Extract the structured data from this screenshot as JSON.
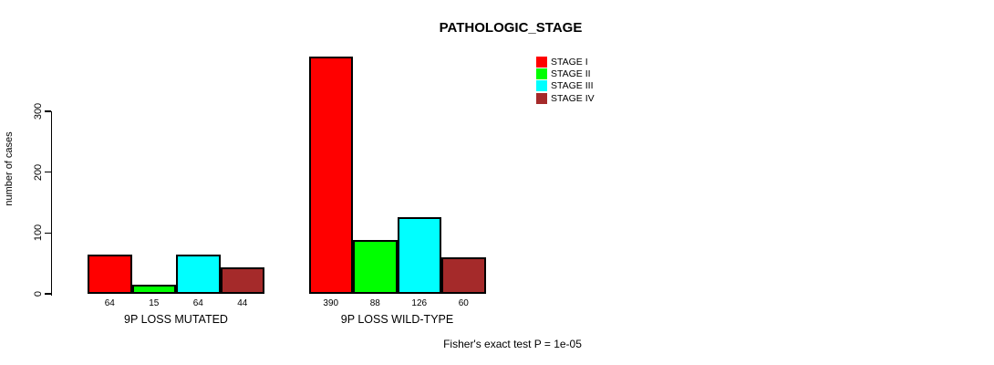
{
  "title": "PATHOLOGIC_STAGE",
  "footer_note": "Fisher's exact test P = 1e-05",
  "colors": {
    "background": "#FFFFFF",
    "axis": "#000000",
    "text": "#000000",
    "stage1": "#FF0000",
    "stage2": "#00FF00",
    "stage3": "#00FFFF",
    "stage4": "#A52A2A"
  },
  "chart_data": {
    "type": "bar",
    "title": "PATHOLOGIC_STAGE",
    "xlabel": "",
    "ylabel": "number of cases",
    "ylim": [
      0,
      300
    ],
    "yticks": [
      0,
      100,
      200,
      300
    ],
    "grid": false,
    "legend_position": "top-right",
    "categories": [
      "9P LOSS MUTATED",
      "9P LOSS WILD-TYPE"
    ],
    "series": [
      {
        "name": "STAGE I",
        "color": "#FF0000",
        "values": [
          64,
          390
        ]
      },
      {
        "name": "STAGE II",
        "color": "#00FF00",
        "values": [
          15,
          88
        ]
      },
      {
        "name": "STAGE III",
        "color": "#00FFFF",
        "values": [
          64,
          126
        ]
      },
      {
        "name": "STAGE IV",
        "color": "#A52A2A",
        "values": [
          44,
          60
        ]
      }
    ],
    "bar_value_labels": [
      [
        64,
        15,
        64,
        44
      ],
      [
        390,
        88,
        126,
        60
      ]
    ],
    "annotation": "Fisher's exact test P = 1e-05"
  }
}
